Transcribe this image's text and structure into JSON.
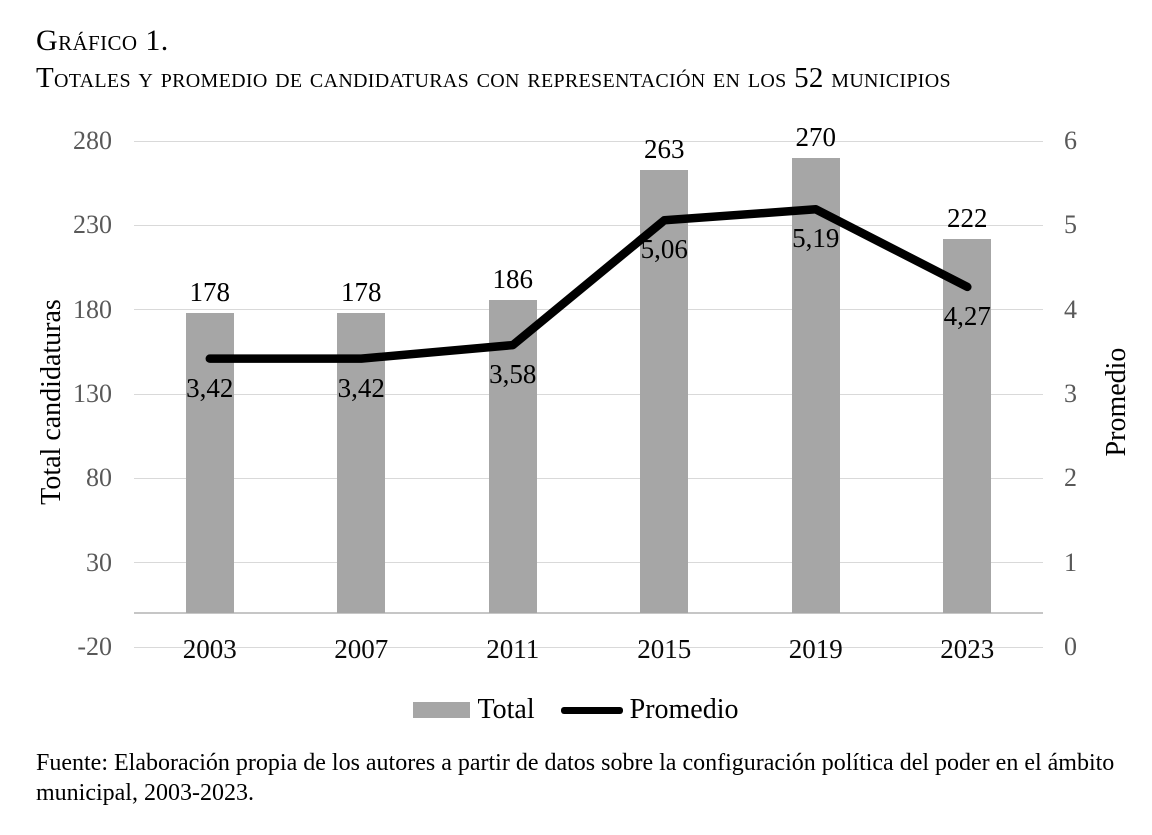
{
  "header": {
    "title": "Gráfico 1.",
    "subtitle": "Totales y promedio de candidaturas con representación en los 52 municipios"
  },
  "colors": {
    "bar": "#a6a6a6",
    "line": "#000000",
    "gridline": "#d9d9d9",
    "axis_line": "#c6c6c6",
    "tick_text": "#595959",
    "label_text": "#000000"
  },
  "chart_data": {
    "type": "bar",
    "subtype": "combo bar+line, dual axis",
    "categories": [
      "2003",
      "2007",
      "2011",
      "2015",
      "2019",
      "2023"
    ],
    "series": [
      {
        "name": "Total",
        "type": "bar",
        "axis": "left",
        "values": [
          178,
          178,
          186,
          263,
          270,
          222
        ],
        "labels": [
          "178",
          "178",
          "186",
          "263",
          "270",
          "222"
        ],
        "color": "#a6a6a6"
      },
      {
        "name": "Promedio",
        "type": "line",
        "axis": "right",
        "values": [
          3.42,
          3.42,
          3.58,
          5.06,
          5.19,
          4.27
        ],
        "labels": [
          "3,42",
          "3,42",
          "3,58",
          "5,06",
          "5,19",
          "4,27"
        ],
        "color": "#000000"
      }
    ],
    "left_axis": {
      "title": "Total candidaturas",
      "min": -20,
      "max": 280,
      "step": 50,
      "ticks": [
        "280",
        "230",
        "180",
        "130",
        "80",
        "30",
        "-20"
      ]
    },
    "right_axis": {
      "title": "Promedio",
      "min": 0,
      "max": 6,
      "step": 1,
      "ticks": [
        "6",
        "5",
        "4",
        "3",
        "2",
        "1",
        "0"
      ]
    },
    "grid": true,
    "legend_position": "bottom",
    "legend": [
      {
        "label": "Total",
        "swatch": "bar"
      },
      {
        "label": "Promedio",
        "swatch": "line"
      }
    ]
  },
  "footer": {
    "source": "Fuente: Elaboración propia de los autores a partir de datos sobre la configuración política del poder en el ámbito municipal, 2003-2023."
  }
}
